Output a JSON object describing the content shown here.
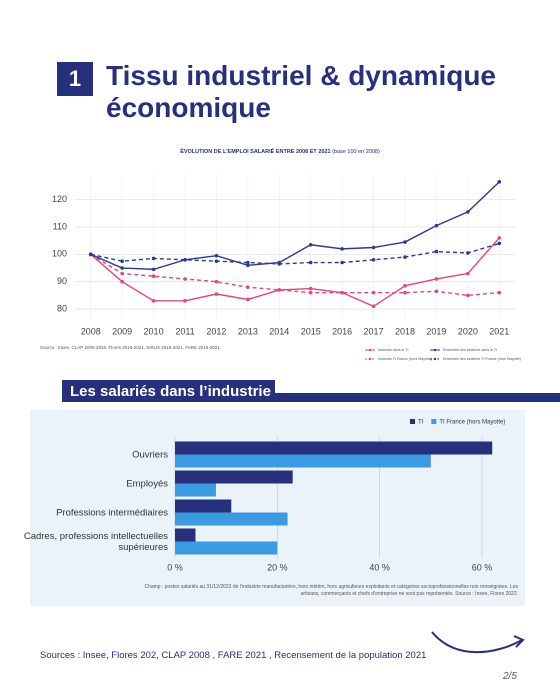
{
  "header": {
    "number": "1",
    "title": "Tissu industriel & dynamique économique"
  },
  "section_title": "Les salariés dans l’industrie",
  "chart_data": [
    {
      "type": "line",
      "title": "ÉVOLUTION DE L’EMPLOI SALARIÉ ENTRE 2008 ET 2021",
      "subtitle": "(base 100 en 2008)",
      "x": [
        2008,
        2009,
        2010,
        2011,
        2012,
        2013,
        2014,
        2015,
        2016,
        2017,
        2018,
        2019,
        2020,
        2021
      ],
      "xlim": [
        2007.5,
        2021.5
      ],
      "xticks": [
        2008,
        2009,
        2010,
        2011,
        2012,
        2013,
        2014,
        2015,
        2016,
        2017,
        2018,
        2019,
        2020,
        2021
      ],
      "ylim": [
        76,
        129
      ],
      "yticks": [
        80,
        90,
        100,
        110,
        120
      ],
      "grid": true,
      "series": [
        {
          "name": "Industrie dans le TI",
          "color": "#e3477c",
          "dash": false,
          "values": [
            100,
            90,
            83,
            83,
            85.5,
            83.5,
            87,
            87.5,
            86,
            81,
            88.5,
            91,
            93,
            106
          ]
        },
        {
          "name": "Industrie TI France (hors Mayotte)",
          "color": "#e3477c",
          "dash": true,
          "values": [
            100,
            93,
            92,
            91,
            90,
            88,
            87,
            86,
            86,
            86,
            86,
            86.5,
            85,
            86
          ]
        },
        {
          "name": "Ensemble des secteurs dans le TI",
          "color": "#2e3a8c",
          "dash": false,
          "values": [
            100,
            95,
            94.5,
            98,
            99.5,
            96,
            97,
            103.5,
            102,
            102.5,
            104.5,
            110.5,
            115.5,
            126.5
          ]
        },
        {
          "name": "Ensemble des secteurs TI France (hors Mayotte)",
          "color": "#2e3a8c",
          "dash": true,
          "values": [
            100,
            97.5,
            98.5,
            98,
            97.5,
            97,
            96.5,
            97,
            97,
            98,
            99,
            101,
            100.5,
            104
          ]
        }
      ],
      "source": "Source : Insee, CLAP 2008-2015, Flores 2016-2021, SIRUS 2016-2021, FARE 2016-2021."
    },
    {
      "type": "hbar",
      "categories": [
        "Ouvriers",
        "Employés",
        "Professions intermédiaires",
        "Cadres, professions intellectuelles supérieures"
      ],
      "series": [
        {
          "name": "TI",
          "color": "#26307c",
          "values": [
            62,
            23,
            11,
            4
          ]
        },
        {
          "name": "TI France (hors Mayotte)",
          "color": "#3c9ae0",
          "values": [
            50,
            8,
            22,
            20
          ]
        }
      ],
      "xlim": [
        0,
        64.5
      ],
      "xticks": [
        {
          "value": 0,
          "label": "0 %"
        },
        {
          "value": 20,
          "label": "20 %"
        },
        {
          "value": 40,
          "label": "40 %"
        },
        {
          "value": 60,
          "label": "60 %"
        }
      ],
      "grid": true,
      "note": "Champ : postes salariés au 31/12/2022 de l’industrie manufacturière, hors intérim, hors agriculteurs exploitants et catégories socioprofessionnelles non renseignées. Les artisans, commerçants et chefs d’entreprise ne sont pas représentés. Source : Insee, Flores 2022."
    }
  ],
  "footer": {
    "sources": "Sources : Insee, Flores 202, CLAP 2008 , FARE 2021 , Recensement de la population 2021",
    "page": "2/5"
  }
}
